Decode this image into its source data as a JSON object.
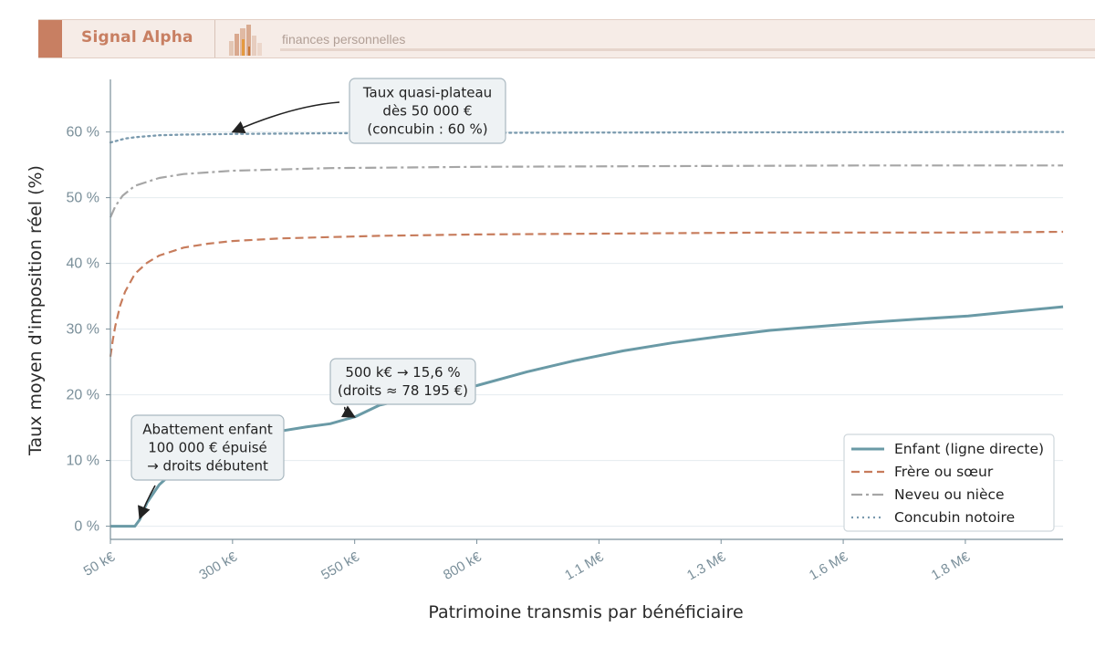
{
  "banner": {
    "brand": "Signal Alpha",
    "tagline": "finances personnelles"
  },
  "colors": {
    "enfant": "#6a9aa6",
    "frere": "#c77c5c",
    "neveu": "#a6a6a6",
    "concubin": "#7a9aae",
    "accent": "#c87f62"
  },
  "chart_data": {
    "type": "line",
    "xlabel": "Patrimoine transmis par bénéficiaire",
    "ylabel": "Taux moyen d'imposition réel (%)",
    "xlim": [
      50000,
      2000000
    ],
    "ylim": [
      -2,
      68
    ],
    "x_ticks": [
      {
        "value": 50000,
        "label": "50 k€"
      },
      {
        "value": 300000,
        "label": "300 k€"
      },
      {
        "value": 550000,
        "label": "550 k€"
      },
      {
        "value": 800000,
        "label": "800 k€"
      },
      {
        "value": 1050000,
        "label": "1.1 M€"
      },
      {
        "value": 1300000,
        "label": "1.3 M€"
      },
      {
        "value": 1550000,
        "label": "1.6 M€"
      },
      {
        "value": 1800000,
        "label": "1.8 M€"
      }
    ],
    "y_ticks": [
      {
        "value": 0,
        "label": "0 %"
      },
      {
        "value": 10,
        "label": "10 %"
      },
      {
        "value": 20,
        "label": "20 %"
      },
      {
        "value": 30,
        "label": "30 %"
      },
      {
        "value": 40,
        "label": "40 %"
      },
      {
        "value": 50,
        "label": "50 %"
      },
      {
        "value": 60,
        "label": "60 %"
      }
    ],
    "grid": "horizontal",
    "legend_position": "bottom-right",
    "series": [
      {
        "name": "Enfant (ligne directe)",
        "key": "enfant",
        "style": "solid",
        "x": [
          50000,
          100000,
          110000,
          125000,
          150000,
          175000,
          200000,
          250000,
          300000,
          350000,
          400000,
          450000,
          500000,
          552324,
          600000,
          700000,
          800000,
          902638,
          1000000,
          1100000,
          1200000,
          1300000,
          1400000,
          1500000,
          1600000,
          1700000,
          1805677,
          1900000,
          2000000
        ],
        "y": [
          0,
          0,
          1.0,
          3.6,
          6.3,
          8.0,
          9.5,
          11.4,
          12.7,
          13.7,
          14.5,
          15.1,
          15.6,
          16.7,
          18.4,
          20.1,
          21.4,
          23.5,
          25.2,
          26.7,
          27.9,
          28.9,
          29.8,
          30.4,
          31.0,
          31.5,
          32.0,
          32.7,
          33.4
        ]
      },
      {
        "name": "Frère ou sœur",
        "key": "frere",
        "style": "dashed",
        "x": [
          50000,
          55000,
          60000,
          70000,
          80000,
          100000,
          125000,
          150000,
          200000,
          250000,
          300000,
          400000,
          500000,
          600000,
          800000,
          1000000,
          1200000,
          1400000,
          1600000,
          1800000,
          2000000
        ],
        "y": [
          25.8,
          28.4,
          30.5,
          33.6,
          35.7,
          38.4,
          40.1,
          41.2,
          42.4,
          43.0,
          43.4,
          43.8,
          44.0,
          44.2,
          44.4,
          44.5,
          44.6,
          44.7,
          44.7,
          44.7,
          44.8
        ]
      },
      {
        "name": "Neveu ou nièce",
        "key": "neveu",
        "style": "dashdot",
        "x": [
          50000,
          60000,
          75000,
          100000,
          150000,
          200000,
          300000,
          500000,
          800000,
          1200000,
          1600000,
          2000000
        ],
        "y": [
          47.0,
          48.7,
          50.3,
          51.8,
          53.0,
          53.6,
          54.1,
          54.5,
          54.7,
          54.8,
          54.9,
          54.9
        ]
      },
      {
        "name": "Concubin notoire",
        "key": "concubin",
        "style": "dotted",
        "x": [
          50000,
          60000,
          80000,
          100000,
          150000,
          200000,
          300000,
          500000,
          1000000,
          2000000
        ],
        "y": [
          58.4,
          58.6,
          59.0,
          59.2,
          59.5,
          59.6,
          59.7,
          59.8,
          59.9,
          60.0
        ]
      }
    ],
    "annotations": [
      {
        "lines": [
          "Taux quasi-plateau",
          "dès 50 000 €",
          "(concubin : 60 %)"
        ],
        "target_x": 300000,
        "target_y": 60
      },
      {
        "lines": [
          "500 k€ → 15,6 %",
          "(droits ≈ 78 195 €)"
        ],
        "target_x": 550000,
        "target_y": 16.6
      },
      {
        "lines": [
          "Abattement enfant",
          "100 000 € épuisé",
          "→ droits débutent"
        ],
        "target_x": 110000,
        "target_y": 1.2
      }
    ]
  }
}
